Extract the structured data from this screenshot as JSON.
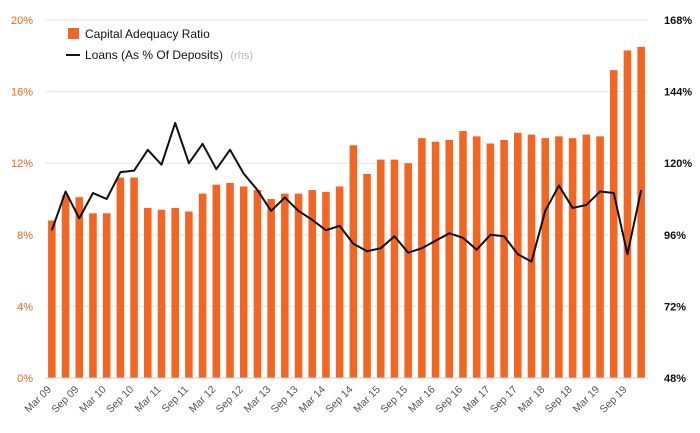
{
  "chart_data": {
    "type": "bar",
    "colors": {
      "bar": "#f26522",
      "line": "#111111",
      "grid": "#e6e6e6",
      "left_axis": "#f26522",
      "right_axis": "#111111"
    },
    "legend": [
      {
        "name": "Capital Adequacy Ratio",
        "note": ""
      },
      {
        "name": "Loans (As % Of Deposits)",
        "note": "(rhs)"
      }
    ],
    "y_left": {
      "min": 0,
      "max": 20,
      "ticks": [
        "0%",
        "4%",
        "8%",
        "12%",
        "16%",
        "20%"
      ]
    },
    "y_right": {
      "min": 48,
      "max": 168,
      "ticks": [
        "48%",
        "72%",
        "96%",
        "120%",
        "144%",
        "168%"
      ]
    },
    "x_tick_labels": [
      "Mar 09",
      "Sep 09",
      "Mar 10",
      "Sep 10",
      "Mar 11",
      "Sep 11",
      "Mar 12",
      "Sep 12",
      "Mar 13",
      "Sep 13",
      "Mar 14",
      "Sep 14",
      "Mar 15",
      "Sep 15",
      "Mar 16",
      "Sep 16",
      "Mar 17",
      "Sep 17",
      "Mar 18",
      "Sep 18",
      "Mar 19",
      "Sep 19"
    ],
    "series": [
      {
        "name": "Capital Adequacy Ratio",
        "type": "bar",
        "axis": "left",
        "values": [
          8.8,
          10.2,
          10.1,
          9.2,
          9.2,
          11.2,
          11.2,
          9.5,
          9.4,
          9.5,
          9.3,
          10.3,
          10.8,
          10.9,
          10.7,
          10.5,
          10.0,
          10.3,
          10.3,
          10.5,
          10.4,
          10.7,
          13.0,
          11.4,
          12.2,
          12.2,
          12.0,
          13.4,
          13.2,
          13.3,
          13.8,
          13.5,
          13.1,
          13.3,
          13.7,
          13.6,
          13.4,
          13.5,
          13.4,
          13.6,
          13.5,
          17.2,
          18.3,
          18.5
        ]
      },
      {
        "name": "Loans (As % Of Deposits)",
        "type": "line",
        "axis": "right",
        "values": [
          97.5,
          110.5,
          101.5,
          110,
          108,
          117,
          117.5,
          124.5,
          119.5,
          133.5,
          120,
          126.5,
          118,
          124.5,
          116.5,
          111,
          104,
          108.5,
          104,
          101,
          97.5,
          99,
          93,
          90.5,
          91.5,
          95.5,
          90,
          91.5,
          94,
          96.5,
          95,
          91,
          96,
          95.5,
          89.5,
          87,
          104,
          112.5,
          105,
          106,
          110.5,
          110,
          89.5,
          111
        ]
      }
    ]
  }
}
